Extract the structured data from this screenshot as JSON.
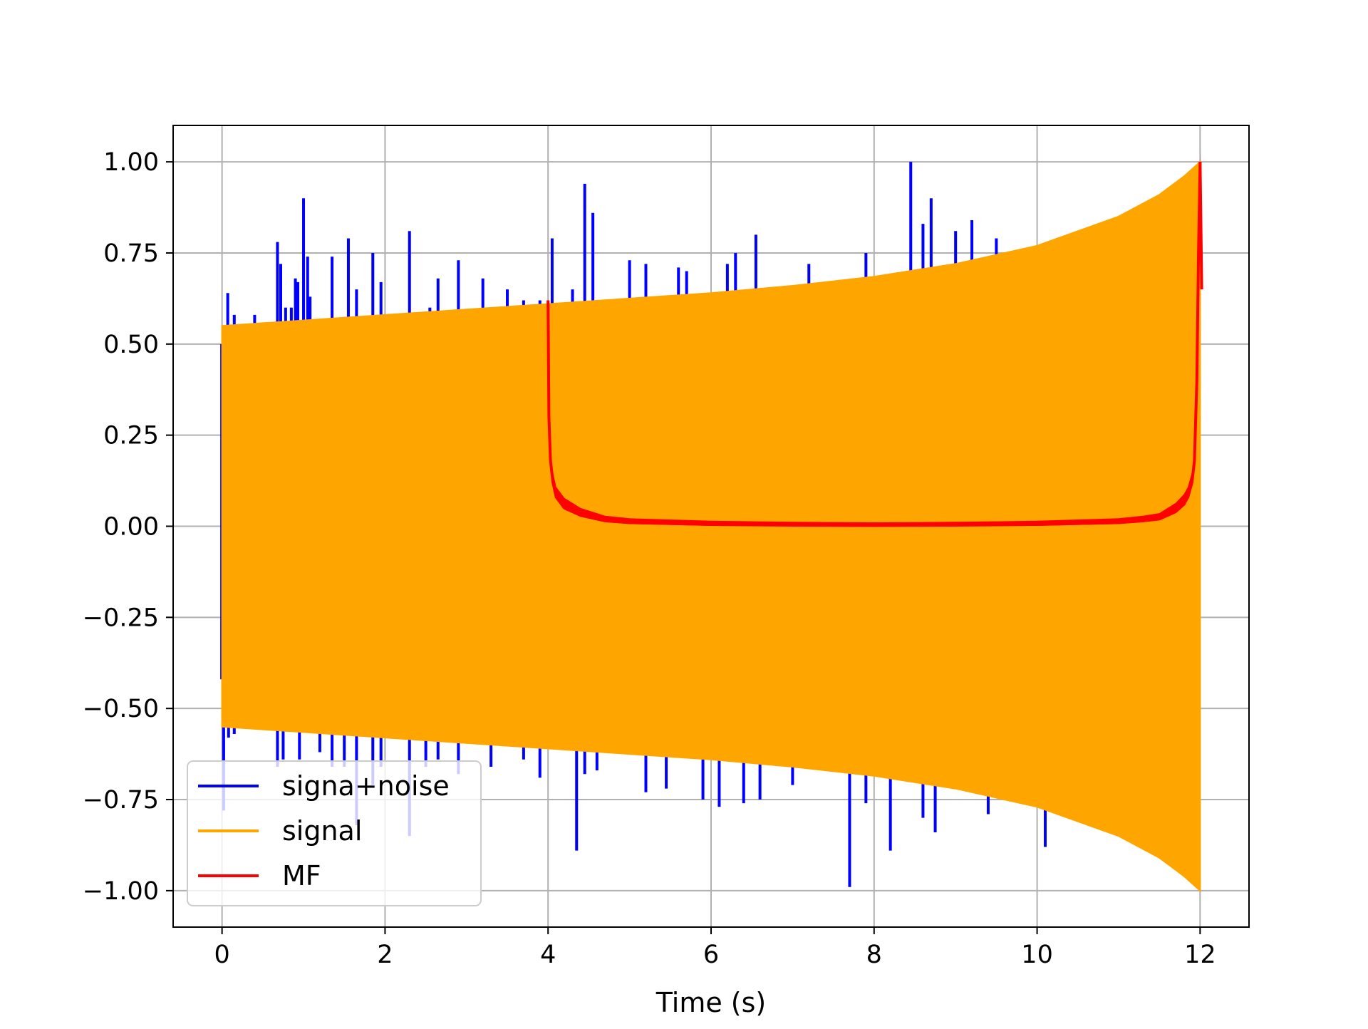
{
  "chart_data": {
    "type": "line",
    "title": "",
    "xlabel": "Time (s)",
    "ylabel": "",
    "xlim": [
      -0.6,
      12.6
    ],
    "ylim": [
      -1.1,
      1.1
    ],
    "x_ticks": [
      0,
      2,
      4,
      6,
      8,
      10,
      12
    ],
    "x_tick_labels": [
      "0",
      "2",
      "4",
      "6",
      "8",
      "10",
      "12"
    ],
    "y_ticks": [
      -1.0,
      -0.75,
      -0.5,
      -0.25,
      0.0,
      0.25,
      0.5,
      0.75,
      1.0
    ],
    "y_tick_labels": [
      "−1.00",
      "−0.75",
      "−0.50",
      "−0.25",
      "0.00",
      "0.25",
      "0.50",
      "0.75",
      "1.00"
    ],
    "grid": true,
    "legend_position": "lower-left",
    "series": [
      {
        "name": "signa+noise",
        "color": "#0000ff",
        "spikes_positive": [
          [
            0.03,
            0.51
          ],
          [
            0.07,
            0.64
          ],
          [
            0.15,
            0.58
          ],
          [
            0.4,
            0.58
          ],
          [
            0.68,
            0.78
          ],
          [
            0.72,
            0.72
          ],
          [
            0.78,
            0.6
          ],
          [
            0.85,
            0.6
          ],
          [
            0.9,
            0.68
          ],
          [
            0.93,
            0.67
          ],
          [
            1.0,
            0.9
          ],
          [
            1.05,
            0.74
          ],
          [
            1.08,
            0.63
          ],
          [
            1.35,
            0.74
          ],
          [
            1.55,
            0.79
          ],
          [
            1.65,
            0.65
          ],
          [
            1.85,
            0.75
          ],
          [
            1.95,
            0.67
          ],
          [
            2.3,
            0.81
          ],
          [
            2.55,
            0.6
          ],
          [
            2.65,
            0.68
          ],
          [
            2.9,
            0.73
          ],
          [
            3.2,
            0.68
          ],
          [
            3.5,
            0.65
          ],
          [
            3.7,
            0.62
          ],
          [
            3.9,
            0.62
          ],
          [
            4.05,
            0.79
          ],
          [
            4.3,
            0.65
          ],
          [
            4.45,
            0.94
          ],
          [
            4.55,
            0.86
          ],
          [
            5.0,
            0.73
          ],
          [
            5.2,
            0.72
          ],
          [
            5.6,
            0.71
          ],
          [
            5.7,
            0.7
          ],
          [
            6.2,
            0.72
          ],
          [
            6.3,
            0.75
          ],
          [
            6.55,
            0.8
          ],
          [
            7.2,
            0.72
          ],
          [
            7.9,
            0.75
          ],
          [
            8.45,
            1.0
          ],
          [
            8.6,
            0.83
          ],
          [
            8.7,
            0.9
          ],
          [
            9.0,
            0.81
          ],
          [
            9.2,
            0.84
          ],
          [
            9.5,
            0.79
          ],
          [
            10.2,
            0.73
          ],
          [
            10.5,
            0.79
          ]
        ],
        "spikes_negative": [
          [
            0.02,
            -0.78
          ],
          [
            0.08,
            -0.58
          ],
          [
            0.15,
            -0.57
          ],
          [
            0.68,
            -0.66
          ],
          [
            0.75,
            -0.64
          ],
          [
            0.95,
            -0.64
          ],
          [
            1.2,
            -0.62
          ],
          [
            1.35,
            -0.66
          ],
          [
            1.5,
            -0.66
          ],
          [
            1.65,
            -0.82
          ],
          [
            1.85,
            -0.71
          ],
          [
            1.95,
            -0.66
          ],
          [
            2.3,
            -0.85
          ],
          [
            2.5,
            -0.66
          ],
          [
            2.65,
            -0.64
          ],
          [
            2.9,
            -0.68
          ],
          [
            3.3,
            -0.66
          ],
          [
            3.7,
            -0.64
          ],
          [
            3.9,
            -0.69
          ],
          [
            4.35,
            -0.89
          ],
          [
            4.45,
            -0.68
          ],
          [
            4.6,
            -0.67
          ],
          [
            5.2,
            -0.73
          ],
          [
            5.45,
            -0.72
          ],
          [
            5.9,
            -0.75
          ],
          [
            6.1,
            -0.77
          ],
          [
            6.4,
            -0.76
          ],
          [
            6.6,
            -0.75
          ],
          [
            7.0,
            -0.71
          ],
          [
            7.7,
            -0.99
          ],
          [
            7.9,
            -0.76
          ],
          [
            8.2,
            -0.89
          ],
          [
            8.6,
            -0.8
          ],
          [
            8.75,
            -0.84
          ],
          [
            9.4,
            -0.79
          ],
          [
            10.1,
            -0.88
          ]
        ]
      },
      {
        "name": "signal",
        "color": "#ffa500",
        "envelope_t": [
          0,
          1,
          2,
          3,
          4,
          5,
          6,
          7,
          8,
          9,
          10,
          11,
          11.5,
          11.8,
          12
        ],
        "envelope_amplitude": [
          0.55,
          0.565,
          0.58,
          0.595,
          0.61,
          0.625,
          0.64,
          0.66,
          0.685,
          0.72,
          0.77,
          0.85,
          0.91,
          0.96,
          1.0
        ]
      },
      {
        "name": "MF",
        "color": "#ff0000",
        "x": [
          4.0,
          4.01,
          4.03,
          4.06,
          4.1,
          4.2,
          4.4,
          4.7,
          5.0,
          6.0,
          7.0,
          8.0,
          9.0,
          10.0,
          11.0,
          11.3,
          11.5,
          11.6,
          11.7,
          11.8,
          11.85,
          11.9,
          11.93,
          11.96,
          11.98,
          12.0
        ],
        "y": [
          0.62,
          0.3,
          0.18,
          0.12,
          0.08,
          0.05,
          0.03,
          0.015,
          0.01,
          0.005,
          0.003,
          0.002,
          0.003,
          0.005,
          0.01,
          0.015,
          0.02,
          0.03,
          0.04,
          0.06,
          0.08,
          0.12,
          0.18,
          0.4,
          0.75,
          1.0
        ],
        "ripple_band_upper": true
      }
    ]
  }
}
